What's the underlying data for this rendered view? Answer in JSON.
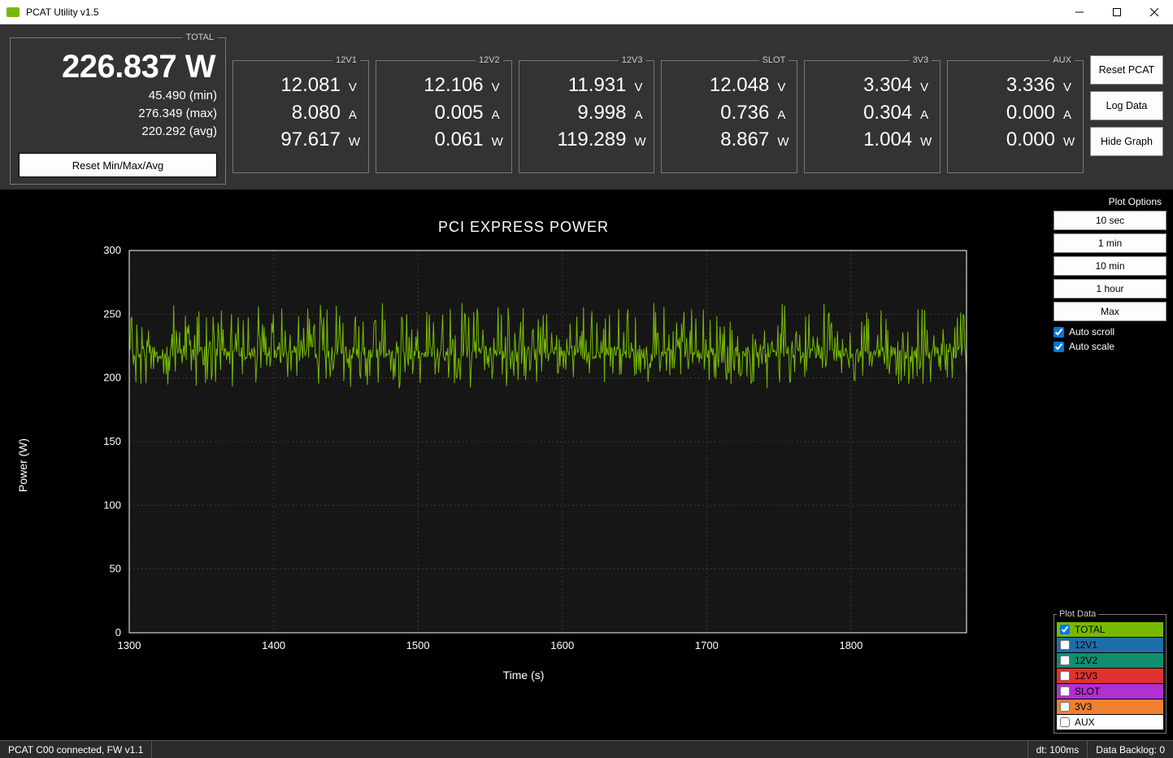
{
  "window": {
    "title": "PCAT Utility v1.5"
  },
  "total": {
    "legend": "TOTAL",
    "value": "226.837 W",
    "min": "45.490 (min)",
    "max": "276.349 (max)",
    "avg": "220.292 (avg)",
    "reset_label": "Reset Min/Max/Avg"
  },
  "rails": [
    {
      "name": "12V1",
      "v": "12.081",
      "a": "8.080",
      "w": "97.617"
    },
    {
      "name": "12V2",
      "v": "12.106",
      "a": "0.005",
      "w": "0.061"
    },
    {
      "name": "12V3",
      "v": "11.931",
      "a": "9.998",
      "w": "119.289"
    },
    {
      "name": "SLOT",
      "v": "12.048",
      "a": "0.736",
      "w": "8.867"
    },
    {
      "name": "3V3",
      "v": "3.304",
      "a": "0.304",
      "w": "1.004"
    },
    {
      "name": "AUX",
      "v": "3.336",
      "a": "0.000",
      "w": "0.000"
    }
  ],
  "actions": {
    "reset_pcat": "Reset PCAT",
    "log_data": "Log Data",
    "hide_graph": "Hide Graph"
  },
  "chart": {
    "title": "PCI EXPRESS POWER",
    "ylabel": "Power (W)",
    "xlabel": "Time (s)",
    "xlim": [
      1300,
      1880
    ],
    "ylim": [
      0,
      300
    ],
    "xticks": [
      1300,
      1400,
      1500,
      1600,
      1700,
      1800
    ],
    "yticks": [
      0,
      50,
      100,
      150,
      200,
      250,
      300
    ],
    "series_color": "#76b900",
    "grid_color": "#3a3a3a",
    "axis_color": "#ffffff",
    "background_color": "#000000",
    "plot_bg": "#161616",
    "data_mean": 220,
    "data_noise_low": 195,
    "data_noise_high": 255,
    "n_points": 1000
  },
  "plot_options": {
    "header": "Plot Options",
    "buttons": [
      "10 sec",
      "1 min",
      "10 min",
      "1 hour",
      "Max"
    ],
    "auto_scroll_label": "Auto scroll",
    "auto_scale_label": "Auto scale",
    "auto_scroll": true,
    "auto_scale": true
  },
  "plot_data": {
    "legend": "Plot Data",
    "items": [
      {
        "label": "TOTAL",
        "color": "#76b900",
        "checked": true
      },
      {
        "label": "12V1",
        "color": "#1e6ea7",
        "checked": false
      },
      {
        "label": "12V2",
        "color": "#0f8f6f",
        "checked": false
      },
      {
        "label": "12V3",
        "color": "#e0322f",
        "checked": false
      },
      {
        "label": "SLOT",
        "color": "#b030d0",
        "checked": false
      },
      {
        "label": "3V3",
        "color": "#f08030",
        "checked": false
      },
      {
        "label": "AUX",
        "color": "#ffffff",
        "checked": false
      }
    ]
  },
  "status": {
    "left": "PCAT C00 connected, FW v1.1",
    "dt": "dt: 100ms",
    "backlog": "Data Backlog: 0"
  },
  "colors": {
    "accent": "#76b900",
    "bg": "#333333"
  }
}
